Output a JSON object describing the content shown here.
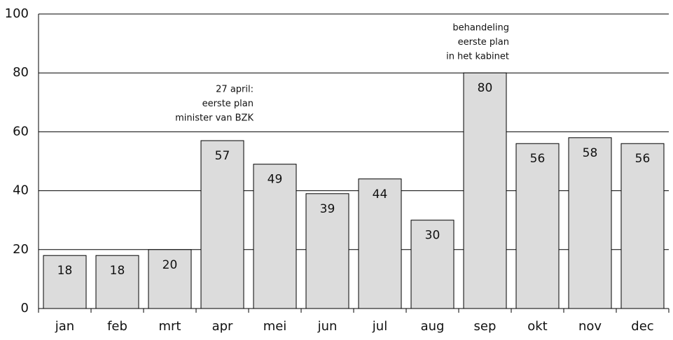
{
  "chart_data": {
    "type": "bar",
    "categories": [
      "jan",
      "feb",
      "mrt",
      "apr",
      "mei",
      "jun",
      "jul",
      "aug",
      "sep",
      "okt",
      "nov",
      "dec"
    ],
    "values": [
      18,
      18,
      20,
      57,
      49,
      39,
      44,
      30,
      80,
      56,
      58,
      56
    ],
    "color": "#dcdcdc",
    "ylim": [
      0,
      100
    ],
    "yticks": [
      0,
      20,
      40,
      60,
      80,
      100
    ],
    "grid": true,
    "annotations": [
      {
        "lines": [
          "27 april:",
          "eerste plan",
          "minister van BZK"
        ]
      },
      {
        "lines": [
          "behandeling",
          "eerste plan",
          "in het kabinet"
        ]
      }
    ]
  }
}
